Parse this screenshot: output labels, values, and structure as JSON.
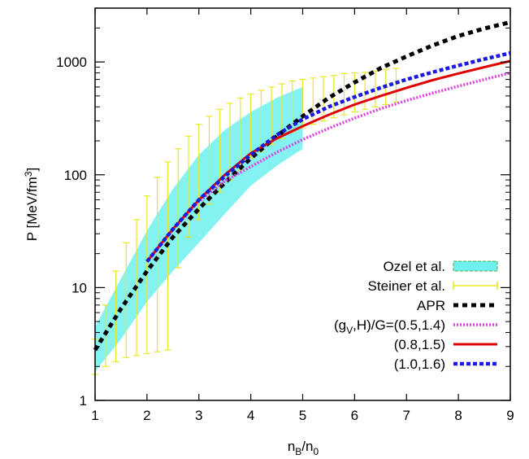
{
  "chart_data": {
    "type": "line",
    "xlabel": "n_B/n_0",
    "ylabel": "P [MeV/fm^3]",
    "xlim": [
      1,
      9
    ],
    "ylim": [
      1,
      3000
    ],
    "yscale": "log",
    "xticks": [
      1,
      2,
      3,
      4,
      5,
      6,
      7,
      8,
      9
    ],
    "yticks": [
      1,
      10,
      100,
      1000
    ],
    "legend_position": "bottom-right",
    "bands": [
      {
        "name": "Ozel et al.",
        "color": "#70f0f0",
        "x": [
          1.0,
          1.5,
          2.0,
          2.5,
          3.0,
          3.5,
          4.0,
          4.5,
          5.0
        ],
        "upper": [
          4.5,
          12,
          32,
          75,
          150,
          250,
          360,
          480,
          600
        ],
        "lower": [
          1.8,
          3.5,
          7.5,
          14,
          25,
          45,
          80,
          120,
          170
        ]
      },
      {
        "name": "Steiner et al.",
        "color": "#e8e820",
        "x": [
          1.0,
          1.2,
          1.4,
          1.6,
          1.8,
          2.0,
          2.2,
          2.4,
          2.6,
          2.8,
          3.0,
          3.2,
          3.4,
          3.6,
          3.8,
          4.0,
          4.2,
          4.4,
          4.6,
          4.8,
          5.0,
          5.2,
          5.4,
          5.6,
          5.8,
          6.0,
          6.2,
          6.4,
          6.6,
          6.8
        ],
        "upper": [
          3.5,
          7,
          14,
          25,
          40,
          65,
          95,
          130,
          170,
          220,
          280,
          330,
          380,
          430,
          480,
          520,
          560,
          600,
          640,
          680,
          700,
          720,
          740,
          760,
          790,
          800,
          810,
          830,
          860,
          880
        ],
        "lower": [
          1.7,
          2.0,
          2.2,
          2.4,
          2.5,
          2.6,
          2.7,
          2.8,
          15,
          28,
          40,
          55,
          70,
          90,
          110,
          140,
          160,
          185,
          210,
          240,
          260,
          280,
          300,
          320,
          340,
          360,
          380,
          400,
          420,
          440
        ]
      }
    ],
    "series": [
      {
        "name": "APR",
        "color": "#000000",
        "style": "dash-thick",
        "x": [
          1.0,
          1.5,
          2.0,
          2.5,
          3.0,
          3.5,
          4.0,
          4.5,
          5.0,
          5.5,
          6.0,
          6.5,
          7.0,
          7.5,
          8.0,
          8.5,
          9.0
        ],
        "y": [
          2.8,
          6.5,
          14,
          28,
          50,
          85,
          140,
          220,
          330,
          480,
          660,
          880,
          1120,
          1400,
          1700,
          1980,
          2250
        ]
      },
      {
        "name": "(g_V,H)/G=(0.5,1.4)",
        "color": "#e040e0",
        "style": "dot",
        "x": [
          2.0,
          2.5,
          3.0,
          3.5,
          4.0,
          4.5,
          5.0,
          5.5,
          6.0,
          6.5,
          7.0,
          7.5,
          8.0,
          8.5,
          9.0
        ],
        "y": [
          17,
          33,
          58,
          88,
          118,
          158,
          205,
          258,
          318,
          385,
          455,
          530,
          610,
          700,
          800
        ]
      },
      {
        "name": "(0.8,1.5)",
        "color": "#e00000",
        "style": "solid",
        "x": [
          2.0,
          2.5,
          3.0,
          3.5,
          4.0,
          4.5,
          5.0,
          5.5,
          6.0,
          6.5,
          7.0,
          7.5,
          8.0,
          8.5,
          9.0
        ],
        "y": [
          17,
          33,
          60,
          100,
          155,
          210,
          270,
          340,
          420,
          500,
          590,
          690,
          790,
          900,
          1020
        ]
      },
      {
        "name": "(1.0,1.6)",
        "color": "#1a1ae0",
        "style": "dash",
        "x": [
          2.0,
          2.5,
          3.0,
          3.5,
          4.0,
          4.5,
          5.0,
          5.5,
          6.0,
          6.5,
          7.0,
          7.5,
          8.0,
          8.5,
          9.0
        ],
        "y": [
          17,
          33,
          60,
          97,
          150,
          225,
          310,
          400,
          490,
          590,
          700,
          810,
          930,
          1060,
          1200
        ]
      }
    ],
    "legend_entries": [
      "Ozel et al.",
      "Steiner et al.",
      "APR",
      "(g_V,H)/G=(0.5,1.4)",
      "(0.8,1.5)",
      "(1.0,1.6)"
    ]
  }
}
